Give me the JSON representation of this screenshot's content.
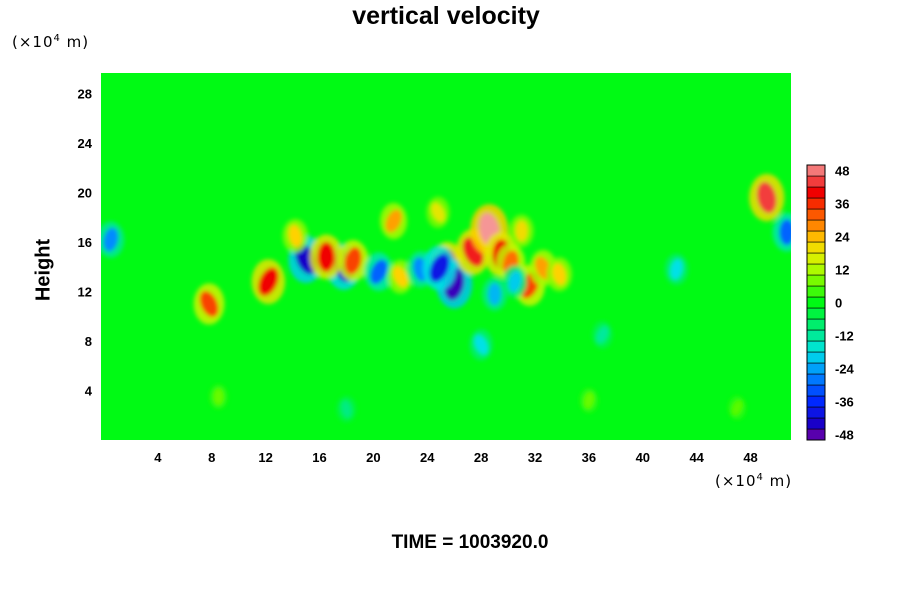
{
  "chart_data": {
    "type": "heatmap",
    "title": "vertical velocity",
    "xlabel": "",
    "ylabel": "Height",
    "x_unit_prefix": "(×10",
    "x_unit_exp": "4",
    "x_unit_suffix": " m)",
    "y_unit_prefix": "(×10",
    "y_unit_exp": "4",
    "y_unit_suffix": " m)",
    "xlim": [
      0,
      51
    ],
    "ylim": [
      0,
      30
    ],
    "x_ticks": [
      4,
      8,
      12,
      16,
      20,
      24,
      28,
      32,
      36,
      40,
      44,
      48
    ],
    "y_ticks": [
      4,
      8,
      12,
      16,
      20,
      24,
      28
    ],
    "colorbar": {
      "min": -50,
      "max": 50,
      "step": 4,
      "tick_values": [
        48,
        36,
        24,
        12,
        0,
        -12,
        -24,
        -36,
        -48
      ],
      "tick_labels": [
        "48",
        "36",
        "24",
        "12",
        "0",
        "-12",
        "-24",
        "-36",
        "-48"
      ]
    },
    "background_value": 0,
    "features": [
      {
        "x": 15.0,
        "y": 14.6,
        "value": -44
      },
      {
        "x": 17.8,
        "y": 14.0,
        "value": -42
      },
      {
        "x": 16.5,
        "y": 14.8,
        "value": 40
      },
      {
        "x": 18.5,
        "y": 14.5,
        "value": 34
      },
      {
        "x": 20.4,
        "y": 13.6,
        "value": -30
      },
      {
        "x": 22.0,
        "y": 13.2,
        "value": 22
      },
      {
        "x": 23.5,
        "y": 13.8,
        "value": -26
      },
      {
        "x": 25.5,
        "y": 14.2,
        "value": 40
      },
      {
        "x": 26.0,
        "y": 12.6,
        "value": -46
      },
      {
        "x": 24.9,
        "y": 13.9,
        "value": -40
      },
      {
        "x": 27.4,
        "y": 15.2,
        "value": 42
      },
      {
        "x": 28.6,
        "y": 17.0,
        "value": 50
      },
      {
        "x": 29.5,
        "y": 15.0,
        "value": 40
      },
      {
        "x": 30.2,
        "y": 14.3,
        "value": 30
      },
      {
        "x": 31.6,
        "y": 12.5,
        "value": 34
      },
      {
        "x": 32.6,
        "y": 13.9,
        "value": 26
      },
      {
        "x": 33.8,
        "y": 13.4,
        "value": 22
      },
      {
        "x": 29.0,
        "y": 11.8,
        "value": -22
      },
      {
        "x": 30.5,
        "y": 12.8,
        "value": -20
      },
      {
        "x": 12.2,
        "y": 12.8,
        "value": 40
      },
      {
        "x": 7.8,
        "y": 11.0,
        "value": 34
      },
      {
        "x": 49.2,
        "y": 19.6,
        "value": 44
      },
      {
        "x": 50.7,
        "y": 16.8,
        "value": -30
      },
      {
        "x": 0.5,
        "y": 16.2,
        "value": -26
      },
      {
        "x": 21.5,
        "y": 17.7,
        "value": 26
      },
      {
        "x": 24.8,
        "y": 18.4,
        "value": 18
      },
      {
        "x": 14.2,
        "y": 16.5,
        "value": 22
      },
      {
        "x": 31.0,
        "y": 16.9,
        "value": 20
      },
      {
        "x": 42.5,
        "y": 13.8,
        "value": -18
      },
      {
        "x": 37.0,
        "y": 8.5,
        "value": -12
      },
      {
        "x": 28.0,
        "y": 7.7,
        "value": -18
      },
      {
        "x": 18.0,
        "y": 2.5,
        "value": -10
      },
      {
        "x": 8.5,
        "y": 3.5,
        "value": 7
      },
      {
        "x": 36.0,
        "y": 3.2,
        "value": 7
      },
      {
        "x": 47.0,
        "y": 2.6,
        "value": 6
      }
    ]
  },
  "time_label": "TIME = 1003920.0"
}
